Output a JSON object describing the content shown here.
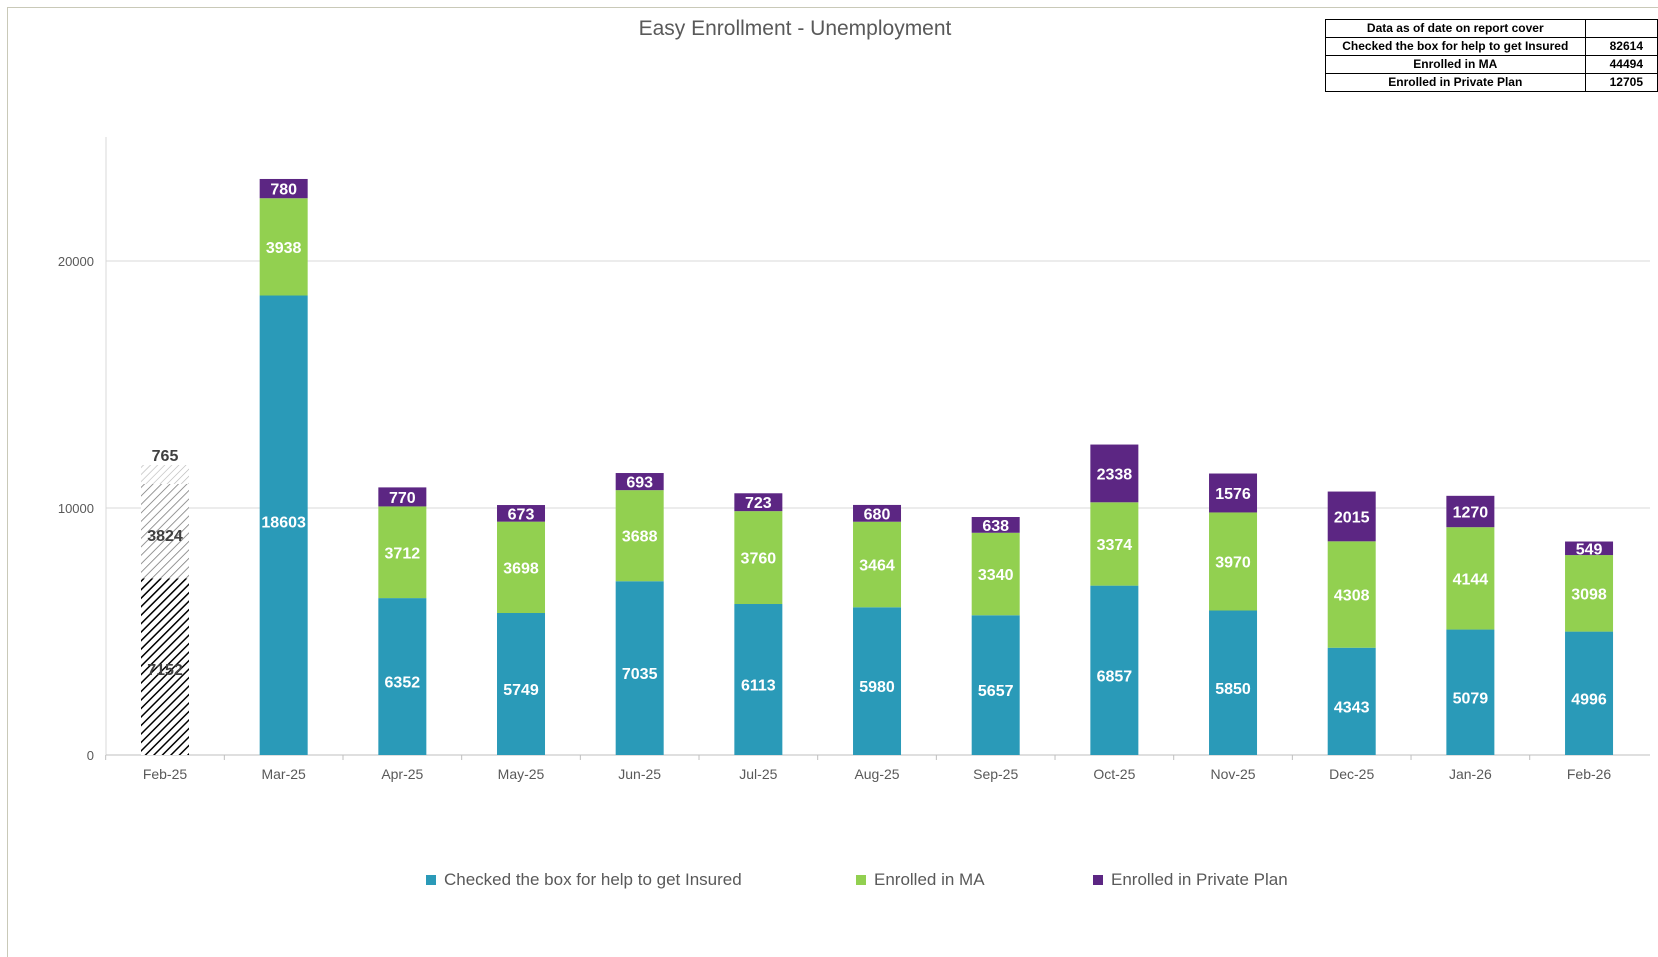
{
  "colors": {
    "checked": "#2a9ab8",
    "ma": "#92d050",
    "private": "#5c2683",
    "axis_text": "#595959",
    "grid": "#d9d9d9"
  },
  "summary_table": {
    "header": "Data as of date on report cover",
    "header_value": "",
    "rows": [
      {
        "label": "Checked the box for help to get Insured",
        "value": "82614"
      },
      {
        "label": "Enrolled in MA",
        "value": "44494"
      },
      {
        "label": "Enrolled in Private Plan",
        "value": "12705"
      }
    ]
  },
  "chart_data": {
    "type": "bar",
    "stacked": true,
    "title": "Easy Enrollment - Unemployment",
    "xlabel": "",
    "ylabel": "",
    "ylim": [
      0,
      24000
    ],
    "yticks": [
      0,
      10000,
      20000
    ],
    "grid": true,
    "legend_position": "bottom",
    "categories": [
      "Feb-25",
      "Mar-25",
      "Apr-25",
      "May-25",
      "Jun-25",
      "Jul-25",
      "Aug-25",
      "Sep-25",
      "Oct-25",
      "Nov-25",
      "Dec-25",
      "Jan-26",
      "Feb-26"
    ],
    "hatched_categories": [
      "Feb-25"
    ],
    "series": [
      {
        "name": "Checked the box for help to get Insured",
        "values": [
          7152,
          18603,
          6352,
          5749,
          7035,
          6113,
          5980,
          5657,
          6857,
          5850,
          4343,
          5079,
          4996
        ]
      },
      {
        "name": "Enrolled in MA",
        "values": [
          3824,
          3938,
          3712,
          3698,
          3688,
          3760,
          3464,
          3340,
          3374,
          3970,
          4308,
          4144,
          3098
        ]
      },
      {
        "name": "Enrolled in Private Plan",
        "values": [
          765,
          780,
          770,
          673,
          693,
          723,
          680,
          638,
          2338,
          1576,
          2015,
          1270,
          549
        ]
      }
    ]
  }
}
